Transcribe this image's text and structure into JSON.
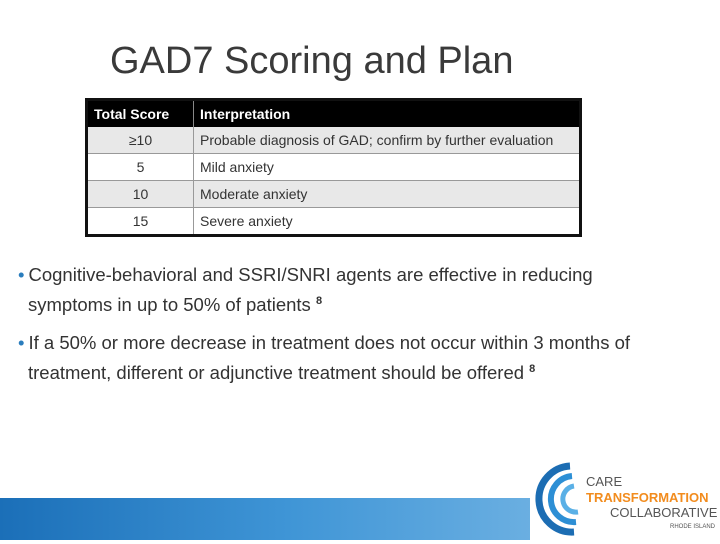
{
  "slide": {
    "title": "GAD7 Scoring and Plan",
    "table": {
      "header": [
        "Total Score",
        "Interpretation"
      ],
      "rows": [
        [
          "≥10",
          "Probable diagnosis of GAD; confirm by further evaluation"
        ],
        [
          "5",
          "Mild anxiety"
        ],
        [
          "10",
          "Moderate anxiety"
        ],
        [
          "15",
          "Severe anxiety"
        ]
      ]
    },
    "bullets": [
      {
        "text": "Cognitive-behavioral and SSRI/SNRI agents are effective in reducing symptoms in up to 50% of patients",
        "ref": "8"
      },
      {
        "text": "If a 50% or more decrease in treatment does not occur within 3 months of treatment, different or adjunctive treatment should be offered",
        "ref": "8"
      }
    ],
    "logo": {
      "line1": "CARE",
      "line2": "TRANSFORMATION",
      "line3": "COLLABORATIVE",
      "line4": "RHODE ISLAND"
    }
  }
}
